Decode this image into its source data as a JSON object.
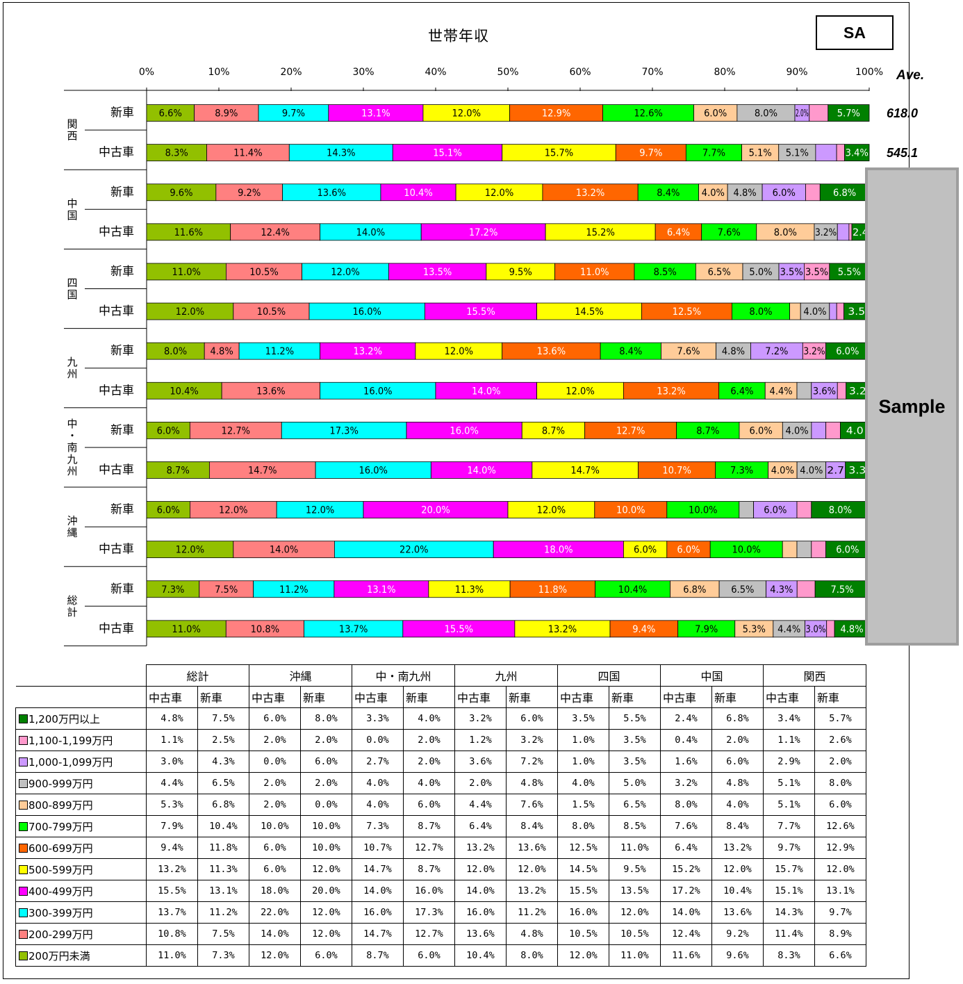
{
  "header": {
    "title": "世帯年収",
    "badge": "SA",
    "ave_label": "Ave.",
    "sample_label": "Sample"
  },
  "averages": [
    "618.0",
    "545.1"
  ],
  "colors": [
    "#92c000",
    "#ff8080",
    "#00ffff",
    "#ff00ff",
    "#ffff00",
    "#ff6600",
    "#00ff00",
    "#ffcc99",
    "#c0c0c0",
    "#cc99ff",
    "#ff99cc",
    "#008000"
  ],
  "income_brackets": [
    "200万円未満",
    "200-299万円",
    "300-399万円",
    "400-499万円",
    "500-599万円",
    "600-699万円",
    "700-799万円",
    "800-899万円",
    "900-999万円",
    "1,000-1,099万円",
    "1,100-1,199万円",
    "1,200万円以上"
  ],
  "chart_data": {
    "type": "bar",
    "orientation": "horizontal-stacked-100",
    "title": "世帯年収",
    "x_ticks": [
      "0%",
      "10%",
      "20%",
      "30%",
      "40%",
      "50%",
      "60%",
      "70%",
      "80%",
      "90%",
      "100%"
    ],
    "xlim": [
      0,
      100
    ],
    "groups": [
      {
        "region": "関西",
        "rows": [
          {
            "label": "新車",
            "values": [
              6.6,
              8.9,
              9.7,
              13.1,
              12.0,
              12.9,
              12.6,
              6.0,
              8.0,
              2.0,
              2.6,
              5.7
            ],
            "shown": [
              "6.6%",
              "8.9%",
              "9.7%",
              "13.1%",
              "12.0%",
              "12.9%",
              "12.6%",
              "6.0%",
              "8.0%",
              "2.0%",
              "",
              "5.7%"
            ]
          },
          {
            "label": "中古車",
            "values": [
              8.3,
              11.4,
              14.3,
              15.1,
              15.7,
              9.7,
              7.7,
              5.1,
              5.1,
              2.9,
              1.1,
              3.4
            ],
            "shown": [
              "8.3%",
              "11.4%",
              "14.3%",
              "15.1%",
              "15.7%",
              "9.7%",
              "7.7%",
              "5.1%",
              "5.1%",
              "",
              "",
              "3.4%"
            ]
          }
        ]
      },
      {
        "region": "中国",
        "rows": [
          {
            "label": "新車",
            "values": [
              9.6,
              9.2,
              13.6,
              10.4,
              12.0,
              13.2,
              8.4,
              4.0,
              4.8,
              6.0,
              2.0,
              6.8
            ],
            "shown": [
              "9.6%",
              "9.2%",
              "13.6%",
              "10.4%",
              "12.0%",
              "13.2%",
              "8.4%",
              "4.0%",
              "4.8%",
              "6.0%",
              "",
              "6.8%"
            ]
          },
          {
            "label": "中古車",
            "values": [
              11.6,
              12.4,
              14.0,
              17.2,
              15.2,
              6.4,
              7.6,
              8.0,
              3.2,
              1.6,
              0.4,
              2.4
            ],
            "shown": [
              "11.6%",
              "12.4%",
              "14.0%",
              "17.2%",
              "15.2%",
              "6.4%",
              "7.6%",
              "8.0%",
              "3.2%",
              "",
              "",
              "2.4"
            ]
          }
        ]
      },
      {
        "region": "四国",
        "rows": [
          {
            "label": "新車",
            "values": [
              11.0,
              10.5,
              12.0,
              13.5,
              9.5,
              11.0,
              8.5,
              6.5,
              5.0,
              3.5,
              3.5,
              5.5
            ],
            "shown": [
              "11.0%",
              "10.5%",
              "12.0%",
              "13.5%",
              "9.5%",
              "11.0%",
              "8.5%",
              "6.5%",
              "5.0%",
              "3.5%",
              "3.5%",
              "5.5%"
            ]
          },
          {
            "label": "中古車",
            "values": [
              12.0,
              10.5,
              16.0,
              15.5,
              14.5,
              12.5,
              8.0,
              1.5,
              4.0,
              1.0,
              1.0,
              3.5
            ],
            "shown": [
              "12.0%",
              "10.5%",
              "16.0%",
              "15.5%",
              "14.5%",
              "12.5%",
              "8.0%",
              "",
              "4.0%",
              "",
              "",
              "3.5"
            ]
          }
        ]
      },
      {
        "region": "九州",
        "rows": [
          {
            "label": "新車",
            "values": [
              8.0,
              4.8,
              11.2,
              13.2,
              12.0,
              13.6,
              8.4,
              7.6,
              4.8,
              7.2,
              3.2,
              6.0
            ],
            "shown": [
              "8.0%",
              "4.8%",
              "11.2%",
              "13.2%",
              "12.0%",
              "13.6%",
              "8.4%",
              "7.6%",
              "4.8%",
              "7.2%",
              "3.2%",
              "6.0%"
            ]
          },
          {
            "label": "中古車",
            "values": [
              10.4,
              13.6,
              16.0,
              14.0,
              12.0,
              13.2,
              6.4,
              4.4,
              2.0,
              3.6,
              1.2,
              3.2
            ],
            "shown": [
              "10.4%",
              "13.6%",
              "16.0%",
              "14.0%",
              "12.0%",
              "13.2%",
              "6.4%",
              "4.4%",
              "",
              "3.6%",
              "",
              "3.2"
            ]
          }
        ]
      },
      {
        "region": "中・南九州",
        "rows": [
          {
            "label": "新車",
            "values": [
              6.0,
              12.7,
              17.3,
              16.0,
              8.7,
              12.7,
              8.7,
              6.0,
              4.0,
              2.0,
              2.0,
              4.0
            ],
            "shown": [
              "6.0%",
              "12.7%",
              "17.3%",
              "16.0%",
              "8.7%",
              "12.7%",
              "8.7%",
              "6.0%",
              "4.0%",
              "",
              "",
              "4.0"
            ]
          },
          {
            "label": "中古車",
            "values": [
              8.7,
              14.7,
              16.0,
              14.0,
              14.7,
              10.7,
              7.3,
              4.0,
              4.0,
              2.7,
              0.0,
              3.3
            ],
            "shown": [
              "8.7%",
              "14.7%",
              "16.0%",
              "14.0%",
              "14.7%",
              "10.7%",
              "7.3%",
              "4.0%",
              "4.0%",
              "2.7",
              "",
              "3.3"
            ]
          }
        ]
      },
      {
        "region": "沖縄",
        "rows": [
          {
            "label": "新車",
            "values": [
              6.0,
              12.0,
              12.0,
              20.0,
              12.0,
              10.0,
              10.0,
              0.0,
              2.0,
              6.0,
              2.0,
              8.0
            ],
            "shown": [
              "6.0%",
              "12.0%",
              "12.0%",
              "20.0%",
              "12.0%",
              "10.0%",
              "10.0%",
              "",
              "",
              "6.0%",
              "",
              "8.0%"
            ]
          },
          {
            "label": "中古車",
            "values": [
              12.0,
              14.0,
              22.0,
              18.0,
              6.0,
              6.0,
              10.0,
              2.0,
              2.0,
              0.0,
              2.0,
              6.0
            ],
            "shown": [
              "12.0%",
              "14.0%",
              "22.0%",
              "18.0%",
              "6.0%",
              "6.0%",
              "10.0%",
              "",
              "",
              "",
              "",
              "6.0%"
            ]
          }
        ]
      },
      {
        "region": "総計",
        "rows": [
          {
            "label": "新車",
            "values": [
              7.3,
              7.5,
              11.2,
              13.1,
              11.3,
              11.8,
              10.4,
              6.8,
              6.5,
              4.3,
              2.5,
              7.5
            ],
            "shown": [
              "7.3%",
              "7.5%",
              "11.2%",
              "13.1%",
              "11.3%",
              "11.8%",
              "10.4%",
              "6.8%",
              "6.5%",
              "4.3%",
              "",
              "7.5%"
            ]
          },
          {
            "label": "中古車",
            "values": [
              11.0,
              10.8,
              13.7,
              15.5,
              13.2,
              9.4,
              7.9,
              5.3,
              4.4,
              3.0,
              1.1,
              4.8
            ],
            "shown": [
              "11.0%",
              "10.8%",
              "13.7%",
              "15.5%",
              "13.2%",
              "9.4%",
              "7.9%",
              "5.3%",
              "4.4%",
              "3.0%",
              "",
              "4.8%"
            ]
          }
        ]
      }
    ]
  },
  "table": {
    "regions": [
      "総計",
      "沖縄",
      "中・南九州",
      "九州",
      "四国",
      "中国",
      "関西"
    ],
    "sub_headers": [
      "中古車",
      "新車"
    ],
    "rows": [
      {
        "label": "1,200万円以上",
        "values": [
          "4.8%",
          "7.5%",
          "6.0%",
          "8.0%",
          "3.3%",
          "4.0%",
          "3.2%",
          "6.0%",
          "3.5%",
          "5.5%",
          "2.4%",
          "6.8%",
          "3.4%",
          "5.7%"
        ]
      },
      {
        "label": "1,100-1,199万円",
        "values": [
          "1.1%",
          "2.5%",
          "2.0%",
          "2.0%",
          "0.0%",
          "2.0%",
          "1.2%",
          "3.2%",
          "1.0%",
          "3.5%",
          "0.4%",
          "2.0%",
          "1.1%",
          "2.6%"
        ]
      },
      {
        "label": "1,000-1,099万円",
        "values": [
          "3.0%",
          "4.3%",
          "0.0%",
          "6.0%",
          "2.7%",
          "2.0%",
          "3.6%",
          "7.2%",
          "1.0%",
          "3.5%",
          "1.6%",
          "6.0%",
          "2.9%",
          "2.0%"
        ]
      },
      {
        "label": "900-999万円",
        "values": [
          "4.4%",
          "6.5%",
          "2.0%",
          "2.0%",
          "4.0%",
          "4.0%",
          "2.0%",
          "4.8%",
          "4.0%",
          "5.0%",
          "3.2%",
          "4.8%",
          "5.1%",
          "8.0%"
        ]
      },
      {
        "label": "800-899万円",
        "values": [
          "5.3%",
          "6.8%",
          "2.0%",
          "0.0%",
          "4.0%",
          "6.0%",
          "4.4%",
          "7.6%",
          "1.5%",
          "6.5%",
          "8.0%",
          "4.0%",
          "5.1%",
          "6.0%"
        ]
      },
      {
        "label": "700-799万円",
        "values": [
          "7.9%",
          "10.4%",
          "10.0%",
          "10.0%",
          "7.3%",
          "8.7%",
          "6.4%",
          "8.4%",
          "8.0%",
          "8.5%",
          "7.6%",
          "8.4%",
          "7.7%",
          "12.6%"
        ]
      },
      {
        "label": "600-699万円",
        "values": [
          "9.4%",
          "11.8%",
          "6.0%",
          "10.0%",
          "10.7%",
          "12.7%",
          "13.2%",
          "13.6%",
          "12.5%",
          "11.0%",
          "6.4%",
          "13.2%",
          "9.7%",
          "12.9%"
        ]
      },
      {
        "label": "500-599万円",
        "values": [
          "13.2%",
          "11.3%",
          "6.0%",
          "12.0%",
          "14.7%",
          "8.7%",
          "12.0%",
          "12.0%",
          "14.5%",
          "9.5%",
          "15.2%",
          "12.0%",
          "15.7%",
          "12.0%"
        ]
      },
      {
        "label": "400-499万円",
        "values": [
          "15.5%",
          "13.1%",
          "18.0%",
          "20.0%",
          "14.0%",
          "16.0%",
          "14.0%",
          "13.2%",
          "15.5%",
          "13.5%",
          "17.2%",
          "10.4%",
          "15.1%",
          "13.1%"
        ]
      },
      {
        "label": "300-399万円",
        "values": [
          "13.7%",
          "11.2%",
          "22.0%",
          "12.0%",
          "16.0%",
          "17.3%",
          "16.0%",
          "11.2%",
          "16.0%",
          "12.0%",
          "14.0%",
          "13.6%",
          "14.3%",
          "9.7%"
        ]
      },
      {
        "label": "200-299万円",
        "values": [
          "10.8%",
          "7.5%",
          "14.0%",
          "12.0%",
          "14.7%",
          "12.7%",
          "13.6%",
          "4.8%",
          "10.5%",
          "10.5%",
          "12.4%",
          "9.2%",
          "11.4%",
          "8.9%"
        ]
      },
      {
        "label": "200万円未満",
        "values": [
          "11.0%",
          "7.3%",
          "12.0%",
          "6.0%",
          "8.7%",
          "6.0%",
          "10.4%",
          "8.0%",
          "12.0%",
          "11.0%",
          "11.6%",
          "9.6%",
          "8.3%",
          "6.6%"
        ]
      }
    ],
    "row_color_index": [
      11,
      10,
      9,
      8,
      7,
      6,
      5,
      4,
      3,
      2,
      1,
      0
    ]
  }
}
